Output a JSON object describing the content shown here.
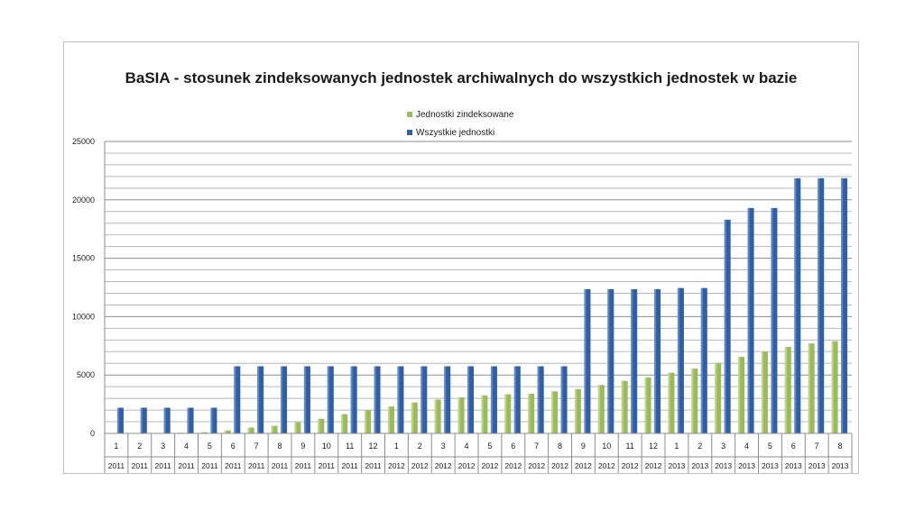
{
  "chart_data": {
    "type": "bar",
    "title": "BaSIA - stosunek zindeksowanych jednostek archiwalnych do wszystkich jednostek w bazie",
    "xlabel": "",
    "ylabel": "",
    "ylim": [
      0,
      25000
    ],
    "yticks": [
      "0",
      "5000",
      "10000",
      "15000",
      "20000",
      "25000"
    ],
    "grid": true,
    "legend_position": "top-center",
    "categories": [
      {
        "month": "1",
        "year": "2011"
      },
      {
        "month": "2",
        "year": "2011"
      },
      {
        "month": "3",
        "year": "2011"
      },
      {
        "month": "4",
        "year": "2011"
      },
      {
        "month": "5",
        "year": "2011"
      },
      {
        "month": "6",
        "year": "2011"
      },
      {
        "month": "7",
        "year": "2011"
      },
      {
        "month": "8",
        "year": "2011"
      },
      {
        "month": "9",
        "year": "2011"
      },
      {
        "month": "10",
        "year": "2011"
      },
      {
        "month": "11",
        "year": "2011"
      },
      {
        "month": "12",
        "year": "2011"
      },
      {
        "month": "1",
        "year": "2012"
      },
      {
        "month": "2",
        "year": "2012"
      },
      {
        "month": "3",
        "year": "2012"
      },
      {
        "month": "4",
        "year": "2012"
      },
      {
        "month": "5",
        "year": "2012"
      },
      {
        "month": "6",
        "year": "2012"
      },
      {
        "month": "7",
        "year": "2012"
      },
      {
        "month": "8",
        "year": "2012"
      },
      {
        "month": "9",
        "year": "2012"
      },
      {
        "month": "10",
        "year": "2012"
      },
      {
        "month": "11",
        "year": "2012"
      },
      {
        "month": "12",
        "year": "2012"
      },
      {
        "month": "1",
        "year": "2013"
      },
      {
        "month": "2",
        "year": "2013"
      },
      {
        "month": "3",
        "year": "2013"
      },
      {
        "month": "4",
        "year": "2013"
      },
      {
        "month": "5",
        "year": "2013"
      },
      {
        "month": "6",
        "year": "2013"
      },
      {
        "month": "7",
        "year": "2013"
      },
      {
        "month": "8",
        "year": "2013"
      }
    ],
    "series": [
      {
        "name": "Jednostki zindeksowane",
        "color": "#9bbb59",
        "values": [
          0,
          0,
          0,
          50,
          100,
          250,
          500,
          650,
          950,
          1250,
          1650,
          2000,
          2300,
          2650,
          2900,
          3100,
          3250,
          3350,
          3400,
          3600,
          3800,
          4150,
          4500,
          4800,
          5200,
          5550,
          6050,
          6550,
          7000,
          7400,
          7700,
          7900
        ]
      },
      {
        "name": "Wszystkie jednostki",
        "color": "#2f5fa7",
        "values": [
          2200,
          2200,
          2200,
          2200,
          2200,
          5750,
          5750,
          5750,
          5750,
          5750,
          5750,
          5750,
          5750,
          5750,
          5750,
          5750,
          5750,
          5750,
          5750,
          5750,
          12350,
          12350,
          12350,
          12350,
          12450,
          12450,
          18300,
          19300,
          19300,
          21850,
          21850,
          21850
        ]
      }
    ]
  }
}
